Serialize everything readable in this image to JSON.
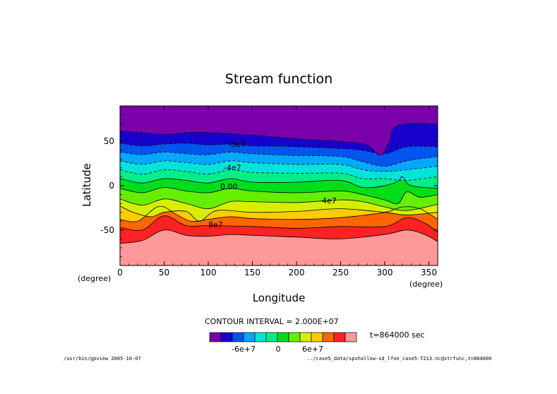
{
  "chart_data": {
    "type": "contour",
    "title": "Stream function",
    "xlabel": "Longitude",
    "ylabel": "Latitude",
    "x_unit_label": "(degree)",
    "y_unit_label": "(degree)",
    "xlim": [
      0,
      360
    ],
    "ylim": [
      -90,
      90
    ],
    "x_ticks": [
      0,
      50,
      100,
      150,
      200,
      250,
      300,
      350
    ],
    "y_ticks": [
      50,
      0,
      -50
    ],
    "contour_interval_text": "CONTOUR INTERVAL = 2.000E+07",
    "time_text": "t=864000 sec",
    "colorbar": {
      "colors": [
        "#7a00aa",
        "#1500cc",
        "#0055ee",
        "#00a8ff",
        "#00e4d8",
        "#00ee88",
        "#00dd1a",
        "#66ee00",
        "#d8ee00",
        "#ffcc00",
        "#ff6600",
        "#ff2222",
        "#ff9999"
      ],
      "tick_labels": [
        "-6e+7",
        "0",
        "6e+7"
      ]
    },
    "contour_line_labels": [
      "-8e7",
      "-4e7",
      "0.00",
      "4e7",
      "8e7"
    ],
    "band_boundaries": [
      {
        "x": [
          0,
          50,
          75,
          100,
          150,
          200,
          250,
          280,
          295,
          305,
          310,
          325,
          350,
          360
        ],
        "y": [
          62,
          58,
          60,
          60,
          57,
          53,
          50,
          46,
          34,
          50,
          65,
          70,
          70,
          70
        ]
      },
      {
        "x": [
          0,
          25,
          50,
          75,
          100,
          125,
          150,
          200,
          250,
          275,
          300,
          325,
          360
        ],
        "y": [
          48,
          45,
          47,
          48,
          46,
          47,
          45,
          44,
          42,
          40,
          36,
          44,
          44
        ]
      },
      {
        "x": [
          0,
          25,
          50,
          75,
          100,
          125,
          150,
          200,
          250,
          275,
          300,
          325,
          360
        ],
        "y": [
          38,
          35,
          38,
          36,
          35,
          38,
          36,
          34,
          33,
          27,
          22,
          28,
          33
        ]
      },
      {
        "x": [
          0,
          25,
          50,
          75,
          100,
          125,
          150,
          200,
          250,
          275,
          300,
          325,
          360
        ],
        "y": [
          28,
          24,
          28,
          26,
          24,
          28,
          26,
          24,
          24,
          18,
          16,
          18,
          22
        ]
      },
      {
        "x": [
          0,
          25,
          50,
          75,
          100,
          125,
          150,
          200,
          250,
          275,
          300,
          325,
          360
        ],
        "y": [
          18,
          13,
          18,
          16,
          13,
          18,
          15,
          14,
          14,
          8,
          8,
          6,
          10
        ]
      },
      {
        "x": [
          0,
          25,
          50,
          75,
          100,
          125,
          150,
          200,
          250,
          275,
          300,
          315,
          320,
          330,
          360
        ],
        "y": [
          8,
          3,
          8,
          6,
          3,
          8,
          4,
          4,
          6,
          -2,
          0,
          5,
          10,
          0,
          -3
        ]
      },
      {
        "x": [
          0,
          25,
          50,
          75,
          100,
          125,
          150,
          200,
          250,
          275,
          300,
          315,
          325,
          340,
          360
        ],
        "y": [
          -3,
          -8,
          -2,
          -6,
          -8,
          -3,
          -6,
          -8,
          -6,
          -10,
          -16,
          -20,
          -7,
          -13,
          -10
        ]
      },
      {
        "x": [
          0,
          25,
          50,
          75,
          100,
          125,
          150,
          200,
          250,
          275,
          300,
          325,
          360
        ],
        "y": [
          -15,
          -22,
          -15,
          -20,
          -26,
          -18,
          -18,
          -19,
          -16,
          -18,
          -24,
          -28,
          -21
        ]
      },
      {
        "x": [
          0,
          15,
          35,
          50,
          75,
          90,
          110,
          150,
          200,
          250,
          300,
          325,
          360
        ],
        "y": [
          -23,
          -30,
          -35,
          -30,
          -29,
          -40,
          -28,
          -30,
          -29,
          -26,
          -30,
          -33,
          -30
        ]
      },
      {
        "x": [
          0,
          20,
          40,
          50,
          60,
          80,
          100,
          125,
          150,
          200,
          250,
          300,
          320,
          340,
          360
        ],
        "y": [
          -38,
          -40,
          -25,
          -24,
          -30,
          -40,
          -38,
          -35,
          -37,
          -38,
          -36,
          -30,
          -24,
          -26,
          -38
        ]
      },
      {
        "x": [
          0,
          25,
          50,
          75,
          100,
          150,
          200,
          250,
          300,
          325,
          345,
          360
        ],
        "y": [
          -47,
          -50,
          -34,
          -45,
          -45,
          -46,
          -48,
          -46,
          -46,
          -36,
          -42,
          -52
        ]
      },
      {
        "x": [
          0,
          25,
          50,
          75,
          100,
          125,
          150,
          200,
          250,
          300,
          325,
          345,
          360
        ],
        "y": [
          -65,
          -62,
          -50,
          -56,
          -57,
          -55,
          -56,
          -58,
          -60,
          -55,
          -50,
          -55,
          -63
        ]
      }
    ]
  },
  "footer": {
    "left": "/usr/bin/gpview  2005-10-07",
    "right": "../case5_data/spshallow-sd_lfon_case5-T213.nc@strfunc,t=864000"
  }
}
